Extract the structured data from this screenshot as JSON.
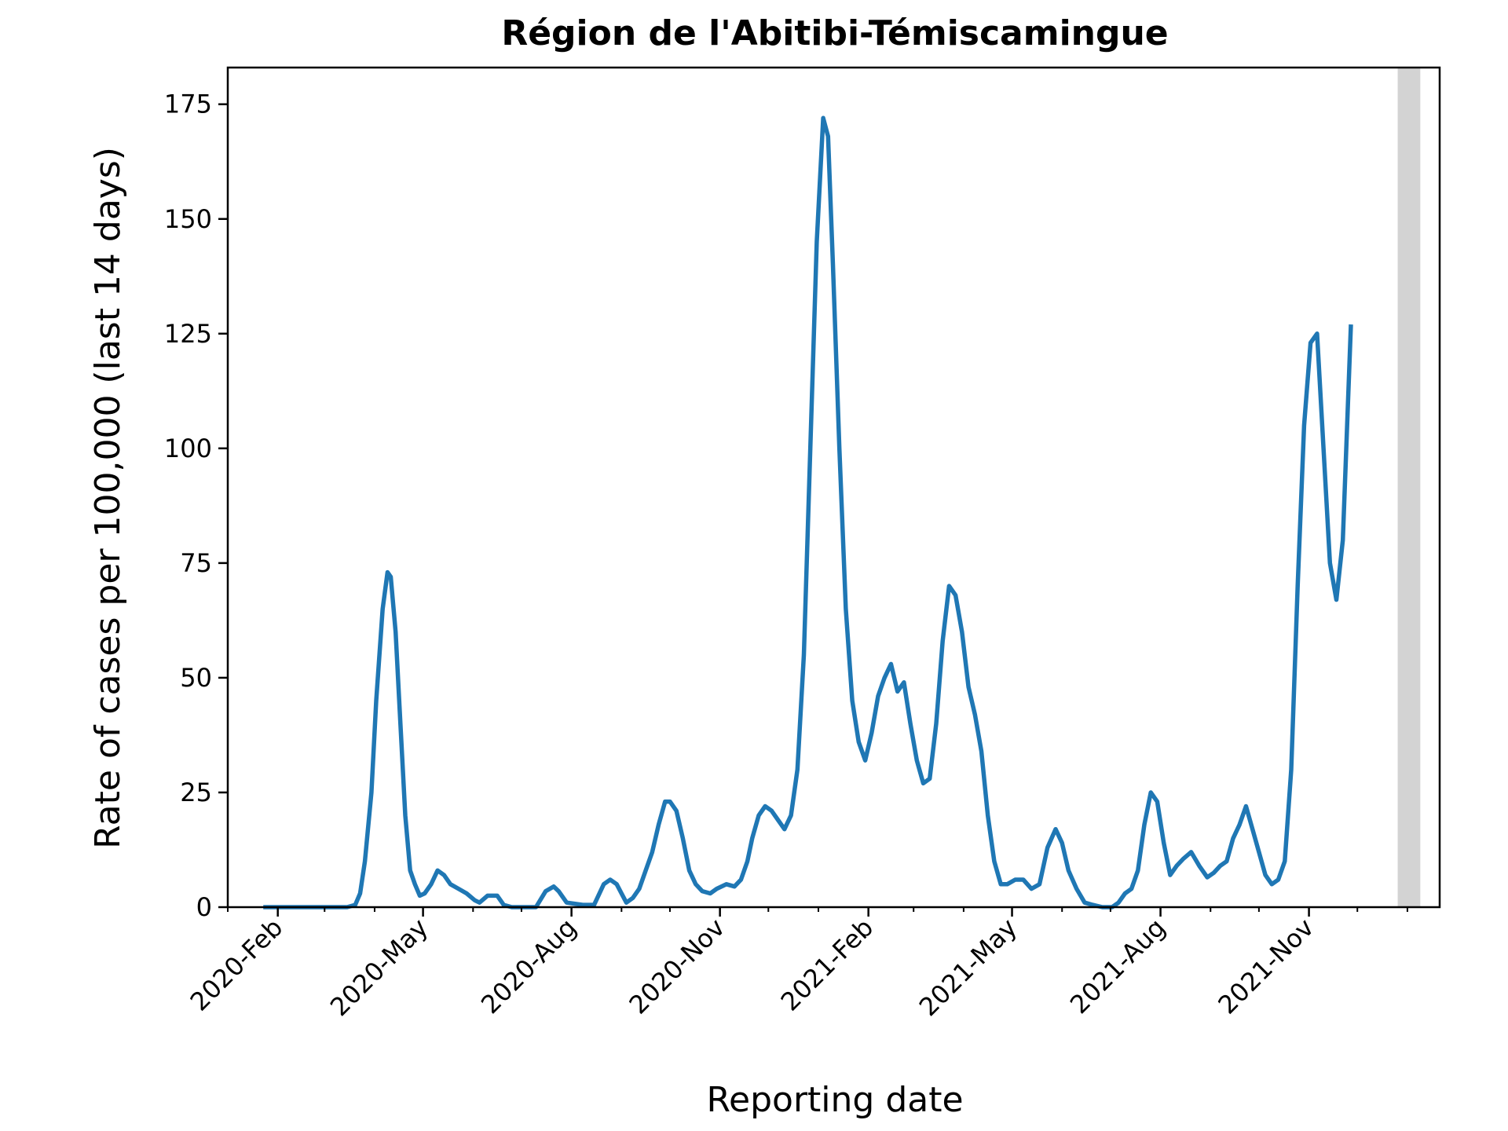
{
  "chart_data": {
    "type": "line",
    "title": "Région de l'Abitibi-Témiscamingue",
    "xlabel": "Reporting date",
    "ylabel": "Rate of cases per 100,000 (last 14 days)",
    "ylim": [
      0,
      183
    ],
    "xlim": [
      "2020-01-01",
      "2022-01-21"
    ],
    "yticks": [
      0,
      25,
      50,
      75,
      100,
      125,
      150,
      175
    ],
    "xticks": [
      {
        "date": "2020-02-01",
        "label": "2020-Feb"
      },
      {
        "date": "2020-05-01",
        "label": "2020-May"
      },
      {
        "date": "2020-08-01",
        "label": "2020-Aug"
      },
      {
        "date": "2020-11-01",
        "label": "2020-Nov"
      },
      {
        "date": "2021-02-01",
        "label": "2021-Feb"
      },
      {
        "date": "2021-05-01",
        "label": "2021-May"
      },
      {
        "date": "2021-08-01",
        "label": "2021-Aug"
      },
      {
        "date": "2021-11-01",
        "label": "2021-Nov"
      }
    ],
    "shaded_region": {
      "start": "2021-12-26",
      "end": "2022-01-09",
      "color": "#d3d3d3"
    },
    "grid": false,
    "series": [
      {
        "color": "#1f77b4",
        "points": [
          [
            "2020-01-23",
            0
          ],
          [
            "2020-02-15",
            0
          ],
          [
            "2020-03-15",
            0
          ],
          [
            "2020-03-20",
            0.5
          ],
          [
            "2020-03-23",
            3
          ],
          [
            "2020-03-26",
            10
          ],
          [
            "2020-03-30",
            25
          ],
          [
            "2020-04-02",
            45
          ],
          [
            "2020-04-06",
            65
          ],
          [
            "2020-04-09",
            73
          ],
          [
            "2020-04-11",
            72
          ],
          [
            "2020-04-14",
            60
          ],
          [
            "2020-04-17",
            40
          ],
          [
            "2020-04-20",
            20
          ],
          [
            "2020-04-23",
            8
          ],
          [
            "2020-04-26",
            5
          ],
          [
            "2020-04-29",
            2.5
          ],
          [
            "2020-05-02",
            3
          ],
          [
            "2020-05-06",
            5
          ],
          [
            "2020-05-10",
            8
          ],
          [
            "2020-05-14",
            7
          ],
          [
            "2020-05-18",
            5
          ],
          [
            "2020-05-23",
            4
          ],
          [
            "2020-05-28",
            3
          ],
          [
            "2020-06-02",
            1.5
          ],
          [
            "2020-06-05",
            1
          ],
          [
            "2020-06-10",
            2.5
          ],
          [
            "2020-06-16",
            2.5
          ],
          [
            "2020-06-20",
            0.5
          ],
          [
            "2020-06-25",
            0
          ],
          [
            "2020-07-10",
            0
          ],
          [
            "2020-07-16",
            3.5
          ],
          [
            "2020-07-21",
            4.5
          ],
          [
            "2020-07-24",
            3.5
          ],
          [
            "2020-07-29",
            1
          ],
          [
            "2020-08-08",
            0.5
          ],
          [
            "2020-08-15",
            0.5
          ],
          [
            "2020-08-21",
            5
          ],
          [
            "2020-08-25",
            6
          ],
          [
            "2020-08-29",
            5
          ],
          [
            "2020-09-01",
            3
          ],
          [
            "2020-09-04",
            1
          ],
          [
            "2020-09-08",
            2
          ],
          [
            "2020-09-12",
            4
          ],
          [
            "2020-09-16",
            8
          ],
          [
            "2020-09-20",
            12
          ],
          [
            "2020-09-24",
            18
          ],
          [
            "2020-09-28",
            23
          ],
          [
            "2020-10-01",
            23
          ],
          [
            "2020-10-05",
            21
          ],
          [
            "2020-10-09",
            15
          ],
          [
            "2020-10-13",
            8
          ],
          [
            "2020-10-17",
            5
          ],
          [
            "2020-10-21",
            3.5
          ],
          [
            "2020-10-26",
            3
          ],
          [
            "2020-10-30",
            4
          ],
          [
            "2020-11-05",
            5
          ],
          [
            "2020-11-10",
            4.5
          ],
          [
            "2020-11-14",
            6
          ],
          [
            "2020-11-18",
            10
          ],
          [
            "2020-11-21",
            15
          ],
          [
            "2020-11-25",
            20
          ],
          [
            "2020-11-29",
            22
          ],
          [
            "2020-12-03",
            21
          ],
          [
            "2020-12-07",
            19
          ],
          [
            "2020-12-11",
            17
          ],
          [
            "2020-12-15",
            20
          ],
          [
            "2020-12-19",
            30
          ],
          [
            "2020-12-23",
            55
          ],
          [
            "2020-12-27",
            100
          ],
          [
            "2020-12-31",
            145
          ],
          [
            "2021-01-04",
            172
          ],
          [
            "2021-01-07",
            168
          ],
          [
            "2021-01-10",
            140
          ],
          [
            "2021-01-14",
            100
          ],
          [
            "2021-01-18",
            65
          ],
          [
            "2021-01-22",
            45
          ],
          [
            "2021-01-26",
            36
          ],
          [
            "2021-01-30",
            32
          ],
          [
            "2021-02-03",
            38
          ],
          [
            "2021-02-07",
            46
          ],
          [
            "2021-02-11",
            50
          ],
          [
            "2021-02-15",
            53
          ],
          [
            "2021-02-19",
            47
          ],
          [
            "2021-02-23",
            49
          ],
          [
            "2021-02-27",
            40
          ],
          [
            "2021-03-03",
            32
          ],
          [
            "2021-03-07",
            27
          ],
          [
            "2021-03-11",
            28
          ],
          [
            "2021-03-15",
            40
          ],
          [
            "2021-03-19",
            58
          ],
          [
            "2021-03-23",
            70
          ],
          [
            "2021-03-27",
            68
          ],
          [
            "2021-03-31",
            60
          ],
          [
            "2021-04-04",
            48
          ],
          [
            "2021-04-08",
            42
          ],
          [
            "2021-04-12",
            34
          ],
          [
            "2021-04-16",
            20
          ],
          [
            "2021-04-20",
            10
          ],
          [
            "2021-04-24",
            5
          ],
          [
            "2021-04-28",
            5
          ],
          [
            "2021-05-03",
            6
          ],
          [
            "2021-05-08",
            6
          ],
          [
            "2021-05-13",
            4
          ],
          [
            "2021-05-18",
            5
          ],
          [
            "2021-05-23",
            13
          ],
          [
            "2021-05-28",
            17
          ],
          [
            "2021-06-01",
            14
          ],
          [
            "2021-06-05",
            8
          ],
          [
            "2021-06-10",
            4
          ],
          [
            "2021-06-15",
            1
          ],
          [
            "2021-06-20",
            0.5
          ],
          [
            "2021-06-26",
            0
          ],
          [
            "2021-07-02",
            0
          ],
          [
            "2021-07-06",
            1
          ],
          [
            "2021-07-10",
            3
          ],
          [
            "2021-07-14",
            4
          ],
          [
            "2021-07-18",
            8
          ],
          [
            "2021-07-22",
            18
          ],
          [
            "2021-07-26",
            25
          ],
          [
            "2021-07-30",
            23
          ],
          [
            "2021-08-03",
            14
          ],
          [
            "2021-08-07",
            7
          ],
          [
            "2021-08-11",
            9
          ],
          [
            "2021-08-15",
            10.5
          ],
          [
            "2021-08-20",
            12
          ],
          [
            "2021-08-25",
            9
          ],
          [
            "2021-08-30",
            6.5
          ],
          [
            "2021-09-03",
            7.5
          ],
          [
            "2021-09-07",
            9
          ],
          [
            "2021-09-11",
            10
          ],
          [
            "2021-09-15",
            15
          ],
          [
            "2021-09-19",
            18
          ],
          [
            "2021-09-23",
            22
          ],
          [
            "2021-09-27",
            17
          ],
          [
            "2021-10-01",
            12
          ],
          [
            "2021-10-05",
            7
          ],
          [
            "2021-10-09",
            5
          ],
          [
            "2021-10-13",
            6
          ],
          [
            "2021-10-17",
            10
          ],
          [
            "2021-10-21",
            30
          ],
          [
            "2021-10-25",
            70
          ],
          [
            "2021-10-29",
            105
          ],
          [
            "2021-11-02",
            123
          ],
          [
            "2021-11-06",
            125
          ],
          [
            "2021-11-10",
            100
          ],
          [
            "2021-11-14",
            75
          ],
          [
            "2021-11-18",
            67
          ],
          [
            "2021-11-22",
            80
          ],
          [
            "2021-11-27",
            127
          ]
        ]
      }
    ]
  }
}
